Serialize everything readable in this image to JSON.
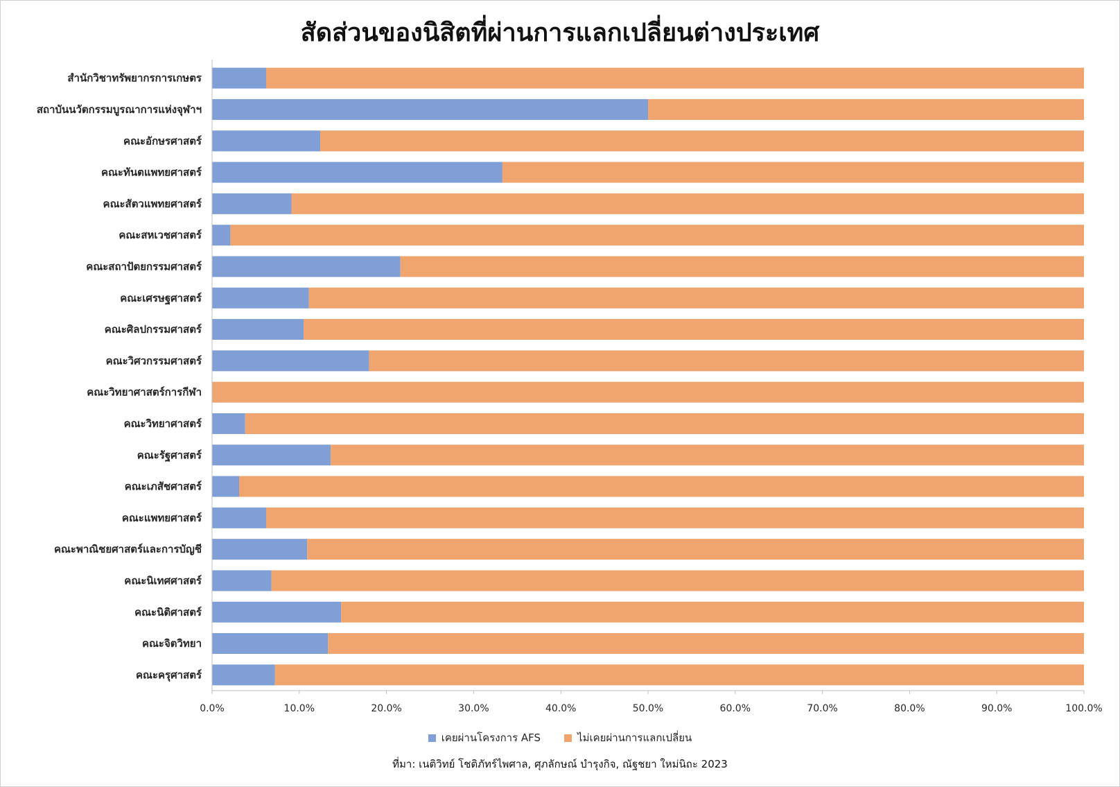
{
  "chart_data": {
    "type": "bar",
    "orientation": "horizontal",
    "stacked": true,
    "percent_stacked": true,
    "title": "สัดส่วนของนิสิตที่ผ่านการแลกเปลี่ยนต่างประเทศ",
    "categories": [
      "สำนักวิชาทรัพยากรการเกษตร",
      "สถาบันนวัตกรรมบูรณาการแห่งจุฬาฯ",
      "คณะอักษรศาสตร์",
      "คณะทันตแพทยศาสตร์",
      "คณะสัตวแพทยศาสตร์",
      "คณะสหเวชศาสตร์",
      "คณะสถาปัตยกรรมศาสตร์",
      "คณะเศรษฐศาสตร์",
      "คณะศิลปกรรมศาสตร์",
      "คณะวิศวกรรมศาสตร์",
      "คณะวิทยาศาสตร์การกีฬา",
      "คณะวิทยาศาสตร์",
      "คณะรัฐศาสตร์",
      "คณะเภสัชศาสตร์",
      "คณะแพทยศาสตร์",
      "คณะพาณิชยศาสตร์และการบัญชี",
      "คณะนิเทศศาสตร์",
      "คณะนิติศาสตร์",
      "คณะจิตวิทยา",
      "คณะครุศาสตร์"
    ],
    "series": [
      {
        "name": "เคยผ่านโครงการ AFS",
        "color": "#7f9fd6",
        "values": [
          6.2,
          50.0,
          12.4,
          33.3,
          9.1,
          2.1,
          21.6,
          11.1,
          10.5,
          18.0,
          0.0,
          3.8,
          13.6,
          3.1,
          6.2,
          10.9,
          6.8,
          14.8,
          13.3,
          7.2
        ]
      },
      {
        "name": "ไม่เคยผ่านการแลกเปลี่ยน",
        "color": "#f0a56f",
        "values": [
          93.8,
          50.0,
          87.6,
          66.7,
          90.9,
          97.9,
          78.4,
          88.9,
          89.5,
          82.0,
          100.0,
          96.2,
          86.4,
          96.9,
          93.8,
          89.1,
          93.2,
          85.2,
          86.7,
          92.8
        ]
      }
    ],
    "xlim": [
      0,
      100
    ],
    "xticks": [
      0,
      10,
      20,
      30,
      40,
      50,
      60,
      70,
      80,
      90,
      100
    ],
    "tick_labels": [
      "0.0%",
      "10.0%",
      "20.0%",
      "30.0%",
      "40.0%",
      "50.0%",
      "60.0%",
      "70.0%",
      "80.0%",
      "90.0%",
      "100.0%"
    ],
    "grid": false,
    "legend_position": "bottom",
    "source": "ที่มา: เนติวิทย์ โชติภัทร์ไพศาล, ศุภลักษณ์ บำรุงกิจ, ณัฐชยา ใหม่นิถะ 2023"
  }
}
